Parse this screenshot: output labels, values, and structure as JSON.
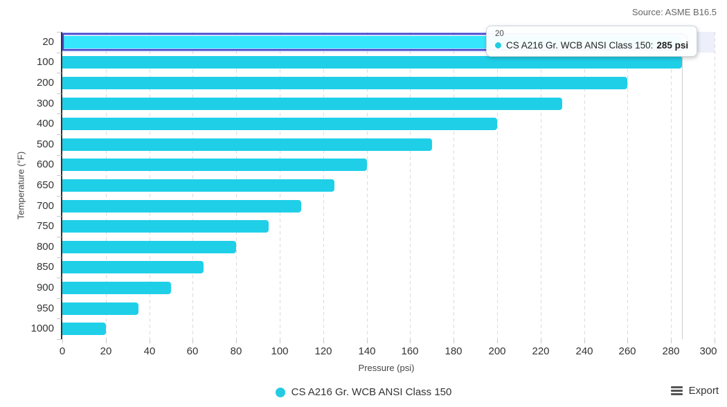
{
  "source": "Source: ASME B16.5",
  "chart_data": {
    "type": "bar",
    "orientation": "horizontal",
    "title": "",
    "xlabel": "Pressure (psi)",
    "ylabel": "Temperature (°F)",
    "categories": [
      "20",
      "100",
      "200",
      "300",
      "400",
      "500",
      "600",
      "650",
      "700",
      "750",
      "800",
      "850",
      "900",
      "950",
      "1000"
    ],
    "series": [
      {
        "name": "CS A216 Gr. WCB ANSI Class 150",
        "values": [
          285,
          285,
          260,
          230,
          200,
          170,
          140,
          125,
          110,
          95,
          80,
          65,
          50,
          35,
          20
        ]
      }
    ],
    "xlim": [
      0,
      300
    ],
    "xticks": [
      0,
      20,
      40,
      60,
      80,
      100,
      120,
      140,
      160,
      180,
      200,
      220,
      240,
      260,
      280,
      300
    ],
    "grid": "vertical-dashed",
    "legend_position": "bottom-center",
    "highlight": {
      "category": "20",
      "value": 285,
      "crosshair_value": 285
    }
  },
  "colors": {
    "bar": "#1FCFE8",
    "bar_hover": "#35E7FC",
    "highlight_ring": "#4245CC",
    "highlight_band": "#EDF0FA",
    "grid": "#DBDBDB",
    "crosshair": "#CCCCCC",
    "axis_line": "#333333",
    "legend_dot": "#24CBE2"
  },
  "tooltip": {
    "header": "20",
    "series_label": "CS A216 Gr. WCB ANSI Class 150:",
    "value": "285 psi"
  },
  "legend": {
    "label": "CS A216 Gr. WCB ANSI Class 150"
  },
  "export": {
    "label": "Export"
  }
}
